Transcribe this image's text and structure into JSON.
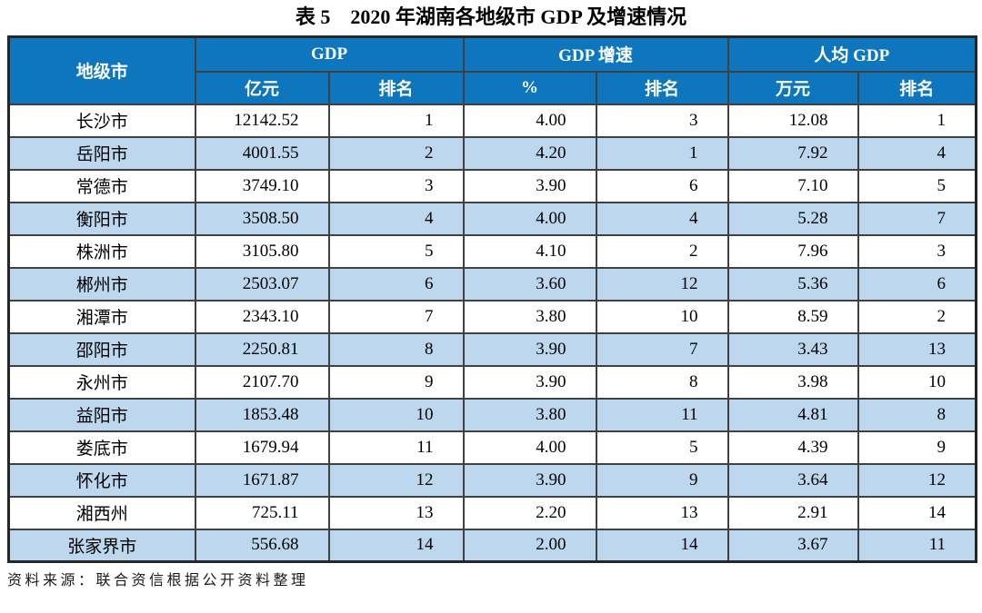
{
  "title": "表 5　2020 年湖南各地级市 GDP 及增速情况",
  "source": "资料来源：联合资信根据公开资料整理",
  "colors": {
    "header_bg": "#0E76BD",
    "row_alt_bg": "#BDD7EE",
    "border": "#404040"
  },
  "table": {
    "header": {
      "city": "地级市",
      "gdp": "GDP",
      "gdp_unit": "亿元",
      "gdp_rank": "排名",
      "growth": "GDP 增速",
      "growth_unit": "%",
      "growth_rank": "排名",
      "per_capita": "人均 GDP",
      "per_capita_unit": "万元",
      "per_capita_rank": "排名"
    },
    "rows": [
      [
        "长沙市",
        "12142.52",
        "1",
        "4.00",
        "3",
        "12.08",
        "1"
      ],
      [
        "岳阳市",
        "4001.55",
        "2",
        "4.20",
        "1",
        "7.92",
        "4"
      ],
      [
        "常德市",
        "3749.10",
        "3",
        "3.90",
        "6",
        "7.10",
        "5"
      ],
      [
        "衡阳市",
        "3508.50",
        "4",
        "4.00",
        "4",
        "5.28",
        "7"
      ],
      [
        "株洲市",
        "3105.80",
        "5",
        "4.10",
        "2",
        "7.96",
        "3"
      ],
      [
        "郴州市",
        "2503.07",
        "6",
        "3.60",
        "12",
        "5.36",
        "6"
      ],
      [
        "湘潭市",
        "2343.10",
        "7",
        "3.80",
        "10",
        "8.59",
        "2"
      ],
      [
        "邵阳市",
        "2250.81",
        "8",
        "3.90",
        "7",
        "3.43",
        "13"
      ],
      [
        "永州市",
        "2107.70",
        "9",
        "3.90",
        "8",
        "3.98",
        "10"
      ],
      [
        "益阳市",
        "1853.48",
        "10",
        "3.80",
        "11",
        "4.81",
        "8"
      ],
      [
        "娄底市",
        "1679.94",
        "11",
        "4.00",
        "5",
        "4.39",
        "9"
      ],
      [
        "怀化市",
        "1671.87",
        "12",
        "3.90",
        "9",
        "3.64",
        "12"
      ],
      [
        "湘西州",
        "725.11",
        "13",
        "2.20",
        "13",
        "2.91",
        "14"
      ],
      [
        "张家界市",
        "556.68",
        "14",
        "2.00",
        "14",
        "3.67",
        "11"
      ]
    ]
  }
}
